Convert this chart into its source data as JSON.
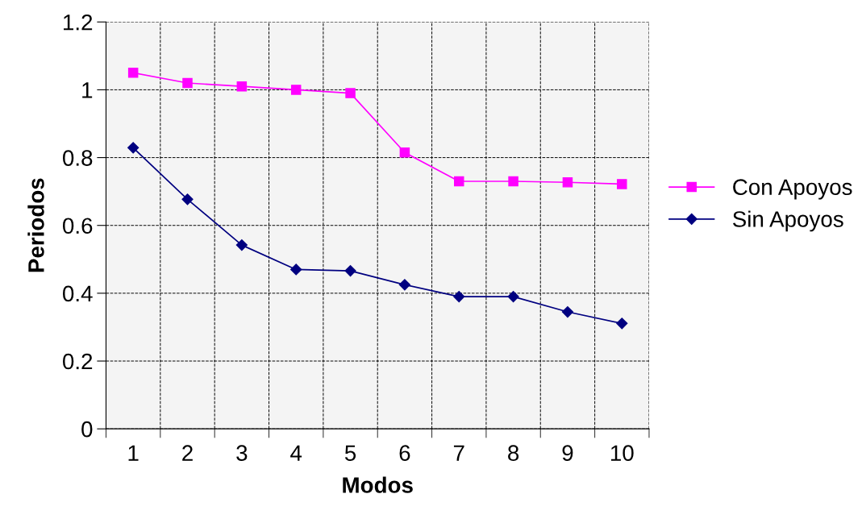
{
  "chart_data": {
    "type": "line",
    "xlabel": "Modos",
    "ylabel": "Periodos",
    "categories": [
      "1",
      "2",
      "3",
      "4",
      "5",
      "6",
      "7",
      "8",
      "9",
      "10"
    ],
    "series": [
      {
        "name": "Con Apoyos",
        "color": "#ff00ff",
        "marker": "square",
        "values": [
          1.05,
          1.02,
          1.01,
          1.0,
          0.99,
          0.815,
          0.73,
          0.73,
          0.727,
          0.722
        ]
      },
      {
        "name": "Sin Apoyos",
        "color": "#000080",
        "marker": "diamond",
        "values": [
          0.829,
          0.677,
          0.542,
          0.47,
          0.466,
          0.425,
          0.39,
          0.39,
          0.345,
          0.311
        ]
      }
    ],
    "ylim": [
      0,
      1.2
    ],
    "yticks": [
      0,
      0.2,
      0.4,
      0.6,
      0.8,
      1,
      1.2
    ],
    "grid": true,
    "legend": "right",
    "line_style": "solid"
  }
}
